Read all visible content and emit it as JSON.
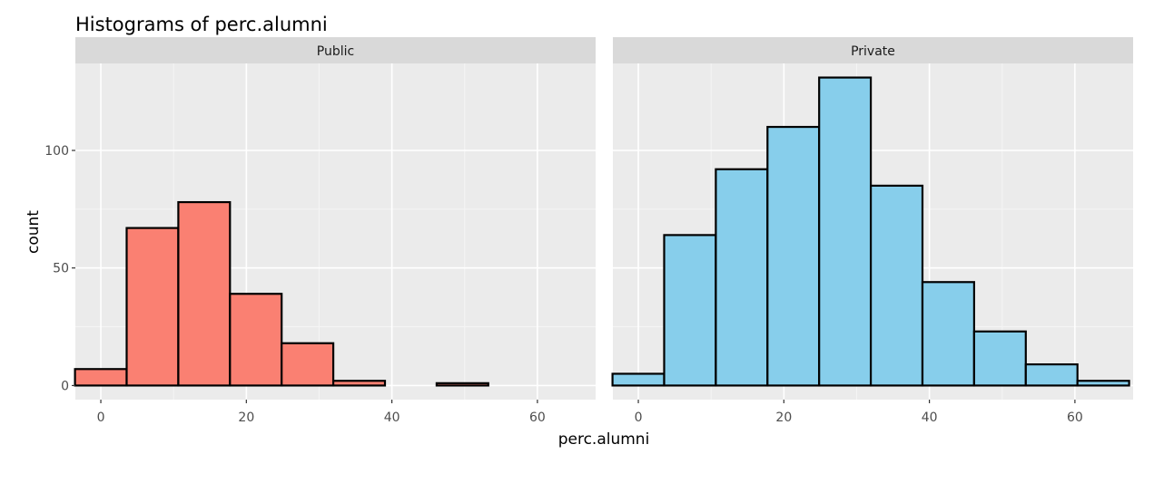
{
  "chart_data": {
    "type": "bar",
    "title": "Histograms of perc.alumni",
    "xlabel": "perc.alumni",
    "ylabel": "count",
    "xlim": [
      -3.5,
      68
    ],
    "ylim": [
      -6,
      137
    ],
    "x_ticks": [
      0,
      20,
      40,
      60
    ],
    "y_ticks": [
      0,
      50,
      100
    ],
    "bin_width": 7.1,
    "bin_centers": [
      0,
      7.1,
      14.2,
      21.3,
      28.4,
      35.5,
      42.6,
      49.7,
      56.8,
      63.9
    ],
    "grid": true,
    "facets": [
      {
        "label": "Public",
        "fill": "#fa8072",
        "counts": [
          7,
          67,
          78,
          39,
          18,
          2,
          0,
          1,
          0,
          0
        ]
      },
      {
        "label": "Private",
        "fill": "#87ceeb",
        "counts": [
          5,
          64,
          92,
          110,
          131,
          85,
          44,
          23,
          9,
          2
        ]
      }
    ]
  }
}
